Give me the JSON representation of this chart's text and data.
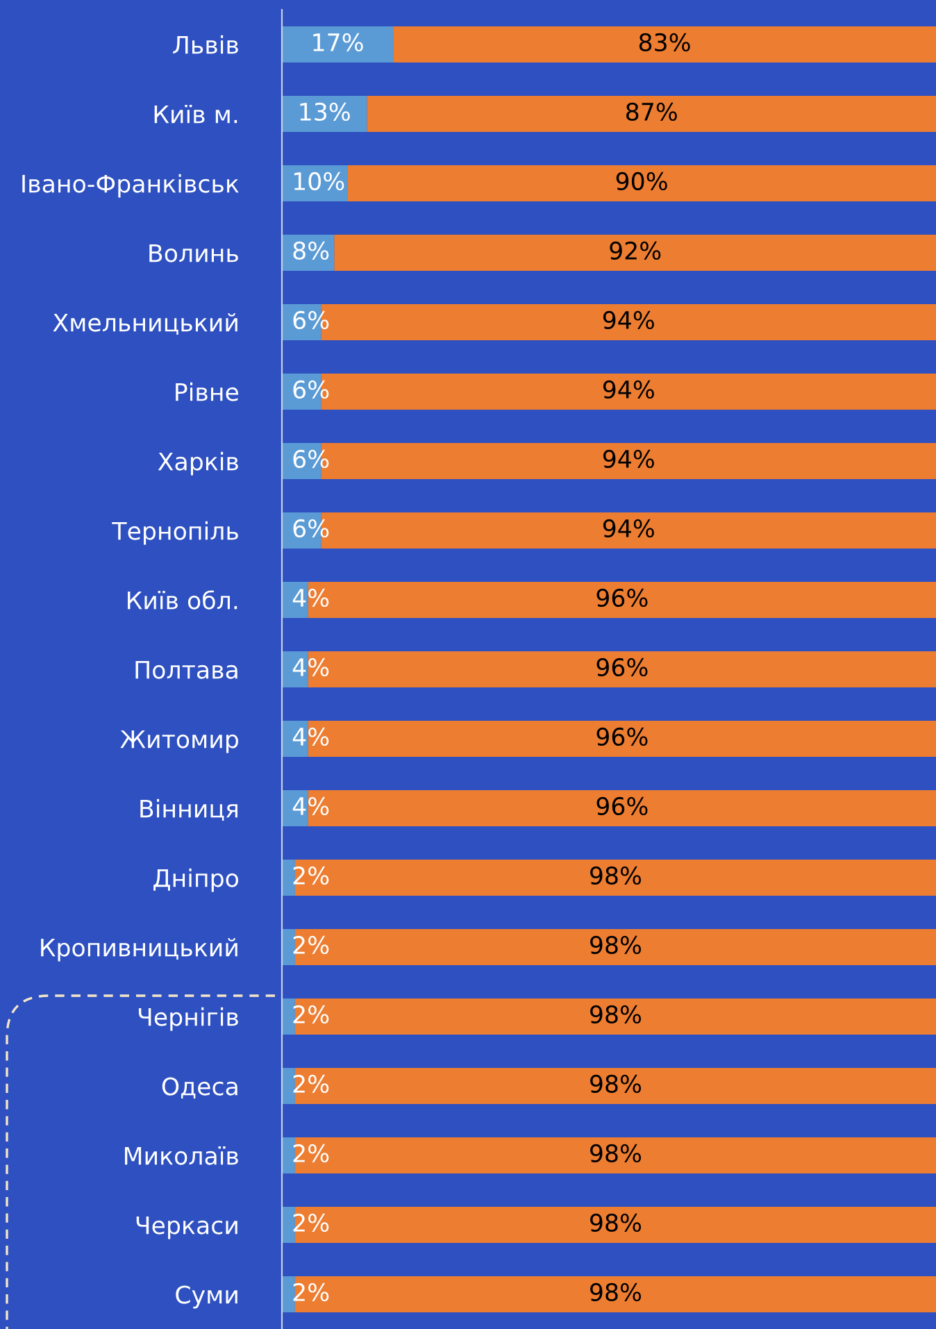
{
  "chart_data": {
    "type": "bar",
    "orientation": "horizontal",
    "stacked": true,
    "tick_labels": "y",
    "grid": false,
    "legend": false,
    "categories": [
      "Львів",
      "Київ м.",
      "Івано-Франківськ",
      "Волинь",
      "Хмельницький",
      "Рівне",
      "Харків",
      "Тернопіль",
      "Київ обл.",
      "Полтава",
      "Житомир",
      "Вінниця",
      "Дніпро",
      "Кропивницький",
      "Чернігів",
      "Одеса",
      "Миколаїв",
      "Черкаси",
      "Суми"
    ],
    "series": [
      {
        "color": "#5b9bd5",
        "values": [
          17,
          13,
          10,
          8,
          6,
          6,
          6,
          6,
          4,
          4,
          4,
          4,
          2,
          2,
          2,
          2,
          2,
          2,
          2
        ],
        "value_labels": [
          "17%",
          "13%",
          "10%",
          "8%",
          "6%",
          "6%",
          "6%",
          "6%",
          "4%",
          "4%",
          "4%",
          "4%",
          "2%",
          "2%",
          "2%",
          "2%",
          "2%",
          "2%",
          "2%"
        ]
      },
      {
        "color": "#ed7d31",
        "values": [
          83,
          87,
          90,
          92,
          94,
          94,
          94,
          94,
          96,
          96,
          96,
          96,
          98,
          98,
          98,
          98,
          98,
          98,
          98
        ],
        "value_labels": [
          "83%",
          "87%",
          "90%",
          "92%",
          "94%",
          "94%",
          "94%",
          "94%",
          "96%",
          "96%",
          "96%",
          "96%",
          "98%",
          "98%",
          "98%",
          "98%",
          "98%",
          "98%",
          "98%"
        ]
      }
    ]
  }
}
